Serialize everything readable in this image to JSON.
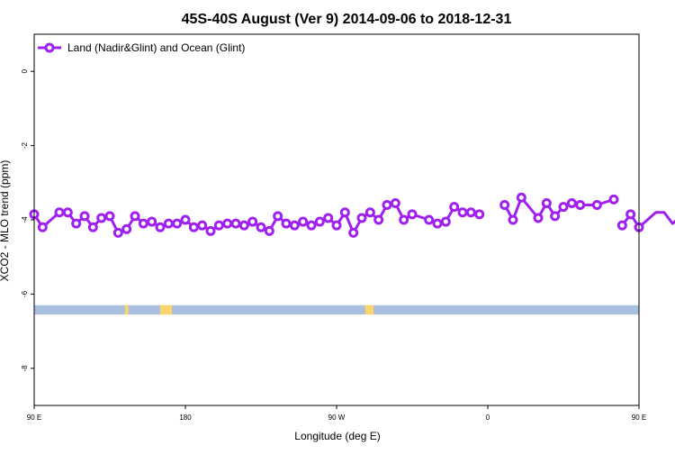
{
  "chart_data": {
    "type": "line",
    "title": "45S-40S August (Ver 9)   2014-09-06 to 2018-12-31",
    "xlabel": "Longitude (deg E)",
    "ylabel": "XCO2 - MLO trend (ppm)",
    "xlim": [
      90,
      450
    ],
    "ylim": [
      -9,
      1
    ],
    "x_ticks": [
      {
        "value": 90,
        "label": "90 E"
      },
      {
        "value": 180,
        "label": "180"
      },
      {
        "value": 270,
        "label": "90 W"
      },
      {
        "value": 360,
        "label": "0"
      },
      {
        "value": 450,
        "label": "90 E"
      },
      {
        "value": 540,
        "label": "180"
      }
    ],
    "y_ticks": [
      {
        "value": 0,
        "label": "0"
      },
      {
        "value": -2,
        "label": "-2"
      },
      {
        "value": -4,
        "label": "-4"
      },
      {
        "value": -6,
        "label": "-6"
      },
      {
        "value": -8,
        "label": "-8"
      }
    ],
    "legend": {
      "position": "top-left"
    },
    "series": [
      {
        "name": "Land (Nadir&Glint) and Ocean (Glint)",
        "color": "#a020f0",
        "points": [
          [
            90,
            -3.85
          ],
          [
            95,
            -4.2
          ],
          [
            105,
            -3.8
          ],
          [
            110,
            -3.8
          ],
          [
            115,
            -4.1
          ],
          [
            120,
            -3.9
          ],
          [
            125,
            -4.2
          ],
          [
            130,
            -3.95
          ],
          [
            135,
            -3.9
          ],
          [
            140,
            -4.35
          ],
          [
            145,
            -4.25
          ],
          [
            150,
            -3.9
          ],
          [
            155,
            -4.1
          ],
          [
            160,
            -4.05
          ],
          [
            165,
            -4.2
          ],
          [
            170,
            -4.1
          ],
          [
            175,
            -4.1
          ],
          [
            180,
            -4.0
          ],
          [
            185,
            -4.2
          ],
          [
            190,
            -4.15
          ],
          [
            195,
            -4.3
          ],
          [
            200,
            -4.15
          ],
          [
            205,
            -4.1
          ],
          [
            210,
            -4.1
          ],
          [
            215,
            -4.15
          ],
          [
            220,
            -4.05
          ],
          [
            225,
            -4.2
          ],
          [
            230,
            -4.3
          ],
          [
            235,
            -3.9
          ],
          [
            240,
            -4.1
          ],
          [
            245,
            -4.15
          ],
          [
            250,
            -4.05
          ],
          [
            255,
            -4.15
          ],
          [
            260,
            -4.05
          ],
          [
            265,
            -3.95
          ],
          [
            270,
            -4.15
          ],
          [
            275,
            -3.8
          ],
          [
            280,
            -4.35
          ],
          [
            285,
            -3.95
          ],
          [
            290,
            -3.8
          ],
          [
            295,
            -4.0
          ],
          [
            300,
            -3.6
          ],
          [
            305,
            -3.55
          ],
          [
            310,
            -4.0
          ],
          [
            315,
            -3.85
          ],
          [
            325,
            -4.0
          ],
          [
            330,
            -4.1
          ],
          [
            335,
            -4.05
          ],
          [
            340,
            -3.65
          ],
          [
            345,
            -3.8
          ],
          [
            350,
            -3.8
          ],
          [
            355,
            -3.85
          ],
          null,
          [
            370,
            -3.6
          ],
          [
            375,
            -4.0
          ],
          [
            380,
            -3.4
          ],
          [
            390,
            -3.95
          ],
          [
            395,
            -3.55
          ],
          [
            400,
            -3.9
          ],
          [
            405,
            -3.65
          ],
          [
            410,
            -3.55
          ],
          [
            415,
            -3.6
          ],
          [
            425,
            -3.6
          ],
          [
            435,
            -3.45
          ],
          null,
          [
            440,
            -4.15
          ],
          [
            445,
            -3.85
          ],
          [
            450,
            -4.2
          ],
          [
            460,
            -3.8
          ],
          [
            465,
            -3.8
          ],
          [
            470,
            -4.1
          ],
          [
            475,
            -3.9
          ],
          [
            480,
            -4.2
          ],
          [
            485,
            -3.95
          ],
          [
            490,
            -3.9
          ],
          [
            495,
            -4.35
          ],
          [
            500,
            -4.25
          ],
          [
            505,
            -3.9
          ],
          [
            510,
            -4.1
          ],
          [
            515,
            -4.05
          ],
          [
            520,
            -4.2
          ],
          [
            525,
            -4.1
          ],
          [
            530,
            -4.1
          ]
        ]
      }
    ],
    "land_strip": {
      "y_range": [
        -6.55,
        -6.3
      ],
      "ocean_color": "#a9bfe0",
      "land_color": "#fbd46a",
      "land_spans": [
        [
          144,
          146
        ],
        [
          165,
          172
        ],
        [
          287,
          292
        ],
        [
          457,
          459
        ],
        [
          476,
          484
        ]
      ]
    }
  }
}
